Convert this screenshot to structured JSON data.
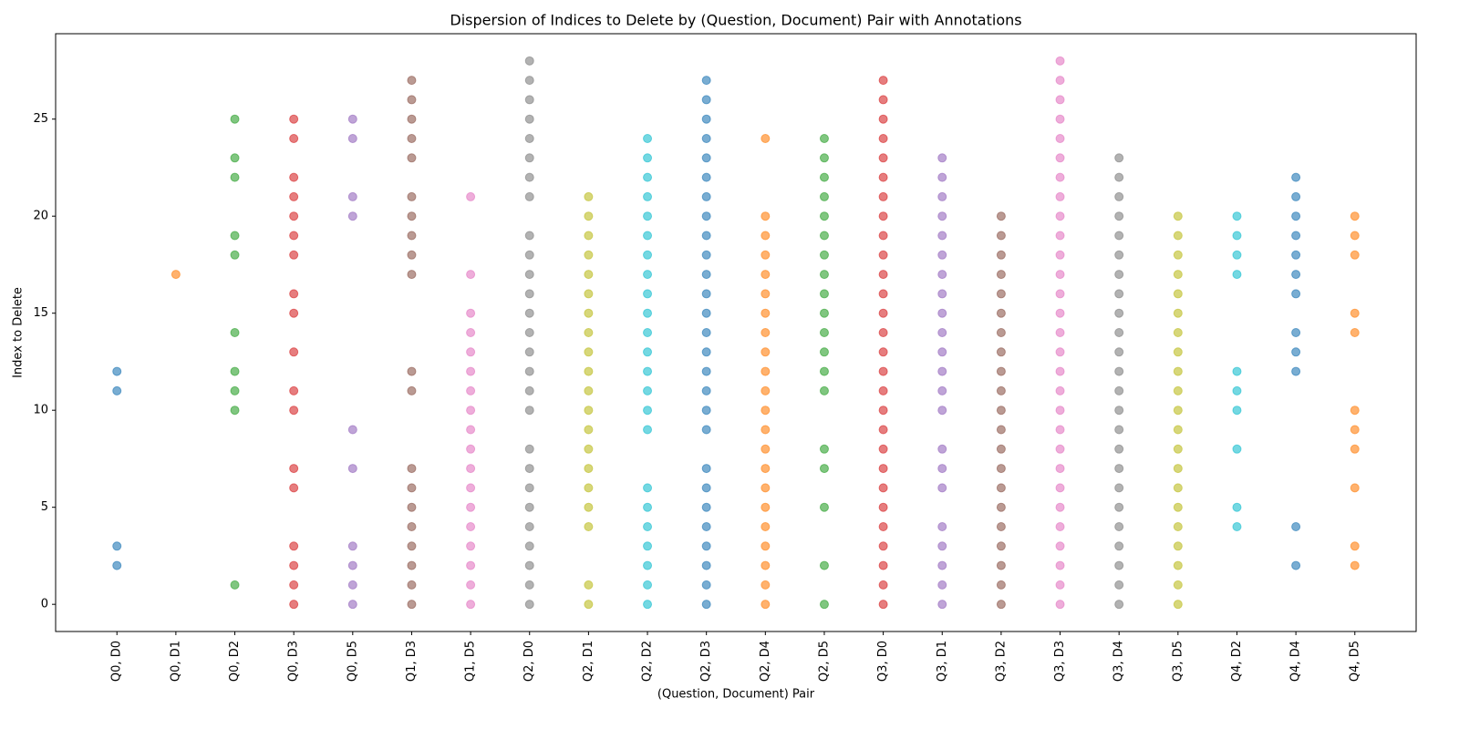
{
  "chart_data": {
    "type": "strip",
    "title": "Dispersion of Indices to Delete by (Question, Document) Pair with Annotations",
    "x_label": "(Question, Document) Pair",
    "y_label": "Index to Delete",
    "ylim": [
      -1.4,
      29.4
    ],
    "yticks": [
      0,
      5,
      10,
      15,
      20,
      25
    ],
    "categories": [
      "Q0, D0",
      "Q0, D1",
      "Q0, D2",
      "Q0, D3",
      "Q0, D5",
      "Q1, D3",
      "Q1, D5",
      "Q2, D0",
      "Q2, D1",
      "Q2, D2",
      "Q2, D3",
      "Q2, D4",
      "Q2, D5",
      "Q3, D0",
      "Q3, D1",
      "Q3, D2",
      "Q3, D3",
      "Q3, D4",
      "Q3, D5",
      "Q4, D2",
      "Q4, D4",
      "Q4, D5"
    ],
    "colors": [
      "#1f77b4",
      "#ff7f0e",
      "#2ca02c",
      "#d62728",
      "#9467bd",
      "#8c564b",
      "#e377c2",
      "#7f7f7f",
      "#bcbd22",
      "#17becf",
      "#1f77b4",
      "#ff7f0e",
      "#2ca02c",
      "#d62728",
      "#9467bd",
      "#8c564b",
      "#e377c2",
      "#7f7f7f",
      "#bcbd22",
      "#17becf",
      "#1f77b4",
      "#ff7f0e"
    ],
    "values": [
      [
        2,
        3,
        11,
        12
      ],
      [
        17
      ],
      [
        1,
        10,
        11,
        12,
        14,
        18,
        19,
        22,
        23,
        25
      ],
      [
        0,
        1,
        2,
        3,
        6,
        7,
        10,
        11,
        13,
        15,
        16,
        18,
        19,
        20,
        21,
        22,
        24,
        25
      ],
      [
        0,
        1,
        2,
        3,
        7,
        9,
        20,
        21,
        24,
        25
      ],
      [
        0,
        1,
        2,
        3,
        4,
        5,
        6,
        7,
        11,
        12,
        17,
        18,
        19,
        20,
        21,
        23,
        24,
        25,
        26,
        27
      ],
      [
        0,
        1,
        2,
        3,
        4,
        5,
        6,
        7,
        8,
        9,
        10,
        11,
        12,
        13,
        14,
        15,
        17,
        21
      ],
      [
        0,
        1,
        2,
        3,
        4,
        5,
        6,
        7,
        8,
        10,
        11,
        12,
        13,
        14,
        15,
        16,
        17,
        18,
        19,
        21,
        22,
        23,
        24,
        25,
        26,
        27,
        28
      ],
      [
        0,
        1,
        4,
        5,
        6,
        7,
        8,
        9,
        10,
        11,
        12,
        13,
        14,
        15,
        16,
        17,
        18,
        19,
        20,
        21
      ],
      [
        0,
        1,
        2,
        3,
        4,
        5,
        6,
        9,
        10,
        11,
        12,
        13,
        14,
        15,
        16,
        17,
        18,
        19,
        20,
        21,
        22,
        23,
        24
      ],
      [
        0,
        1,
        2,
        3,
        4,
        5,
        6,
        7,
        9,
        10,
        11,
        12,
        13,
        14,
        15,
        16,
        17,
        18,
        19,
        20,
        21,
        22,
        23,
        24,
        25,
        26,
        27
      ],
      [
        0,
        1,
        2,
        3,
        4,
        5,
        6,
        7,
        8,
        9,
        10,
        11,
        12,
        13,
        14,
        15,
        16,
        17,
        18,
        19,
        20,
        24
      ],
      [
        0,
        2,
        5,
        7,
        8,
        11,
        12,
        13,
        14,
        15,
        16,
        17,
        18,
        19,
        20,
        21,
        22,
        23,
        24
      ],
      [
        0,
        1,
        2,
        3,
        4,
        5,
        6,
        7,
        8,
        9,
        10,
        11,
        12,
        13,
        14,
        15,
        16,
        17,
        18,
        19,
        20,
        21,
        22,
        23,
        24,
        25,
        26,
        27
      ],
      [
        0,
        1,
        2,
        3,
        4,
        6,
        7,
        8,
        10,
        11,
        12,
        13,
        14,
        15,
        16,
        17,
        18,
        19,
        20,
        21,
        22,
        23
      ],
      [
        0,
        1,
        2,
        3,
        4,
        5,
        6,
        7,
        8,
        9,
        10,
        11,
        12,
        13,
        14,
        15,
        16,
        17,
        18,
        19,
        20
      ],
      [
        0,
        1,
        2,
        3,
        4,
        5,
        6,
        7,
        8,
        9,
        10,
        11,
        12,
        13,
        14,
        15,
        16,
        17,
        18,
        19,
        20,
        21,
        22,
        23,
        24,
        25,
        26,
        27,
        28
      ],
      [
        0,
        1,
        2,
        3,
        4,
        5,
        6,
        7,
        8,
        9,
        10,
        11,
        12,
        13,
        14,
        15,
        16,
        17,
        18,
        19,
        20,
        21,
        22,
        23
      ],
      [
        0,
        1,
        2,
        3,
        4,
        5,
        6,
        7,
        8,
        9,
        10,
        11,
        12,
        13,
        14,
        15,
        16,
        17,
        18,
        19,
        20
      ],
      [
        4,
        5,
        8,
        10,
        11,
        12,
        17,
        18,
        19,
        20
      ],
      [
        2,
        4,
        12,
        13,
        14,
        16,
        17,
        18,
        19,
        20,
        21,
        22
      ],
      [
        2,
        3,
        6,
        8,
        9,
        10,
        14,
        15,
        18,
        19,
        20
      ]
    ]
  }
}
